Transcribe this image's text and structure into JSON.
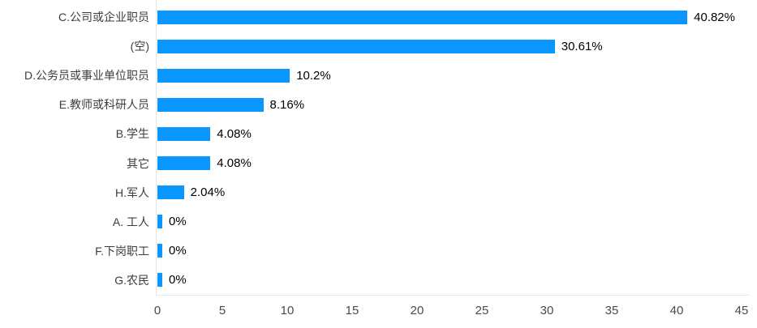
{
  "chart_data": {
    "type": "bar",
    "orientation": "horizontal",
    "title": "",
    "xlabel": "",
    "ylabel": "",
    "categories": [
      "C.公司或企业职员",
      "(空)",
      "D.公务员或事业单位职员",
      "E.教师或科研人员",
      "B.学生",
      "其它",
      "H.军人",
      "A. 工人",
      "F.下岗职工",
      "G.农民"
    ],
    "values": [
      40.82,
      30.61,
      10.2,
      8.16,
      4.08,
      4.08,
      2.04,
      0,
      0,
      0
    ],
    "value_labels": [
      "40.82%",
      "30.61%",
      "10.2%",
      "8.16%",
      "4.08%",
      "4.08%",
      "2.04%",
      "0%",
      "0%",
      "0%"
    ],
    "x_ticks": [
      0,
      5,
      10,
      15,
      20,
      25,
      30,
      35,
      40,
      45
    ],
    "xlim": [
      0,
      45
    ],
    "grid": false,
    "legend": false,
    "colors": {
      "bar": "#0996ff",
      "category_label": "#3d3d3d",
      "value_label": "#000000",
      "tick_label": "#4a4a4a",
      "axis_line": "#e2e8ef"
    }
  }
}
